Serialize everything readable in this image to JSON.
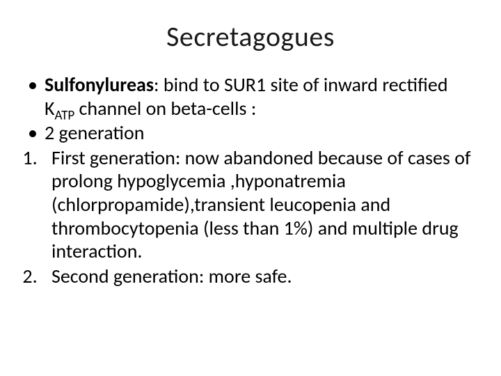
{
  "slide": {
    "title": "Secretagogues",
    "bullet1_bold": "Sulfonylureas",
    "bullet1_rest_a": ": bind to SUR1 site of inward rectified K",
    "bullet1_sub": "ATP",
    "bullet1_rest_b": "  channel on   beta-cells :",
    "bullet2": "2 generation",
    "num1": "First generation: now abandoned  because of cases of prolong hypoglycemia ,hyponatremia (chlorpropamide),transient  leucopenia and thrombocytopenia (less than 1%) and multiple drug interaction.",
    "num2": "Second generation: more safe."
  },
  "style": {
    "background_color": "#ffffff",
    "text_color": "#000000",
    "title_fontsize": 40,
    "body_fontsize": 28,
    "font_family": "Calibri"
  }
}
